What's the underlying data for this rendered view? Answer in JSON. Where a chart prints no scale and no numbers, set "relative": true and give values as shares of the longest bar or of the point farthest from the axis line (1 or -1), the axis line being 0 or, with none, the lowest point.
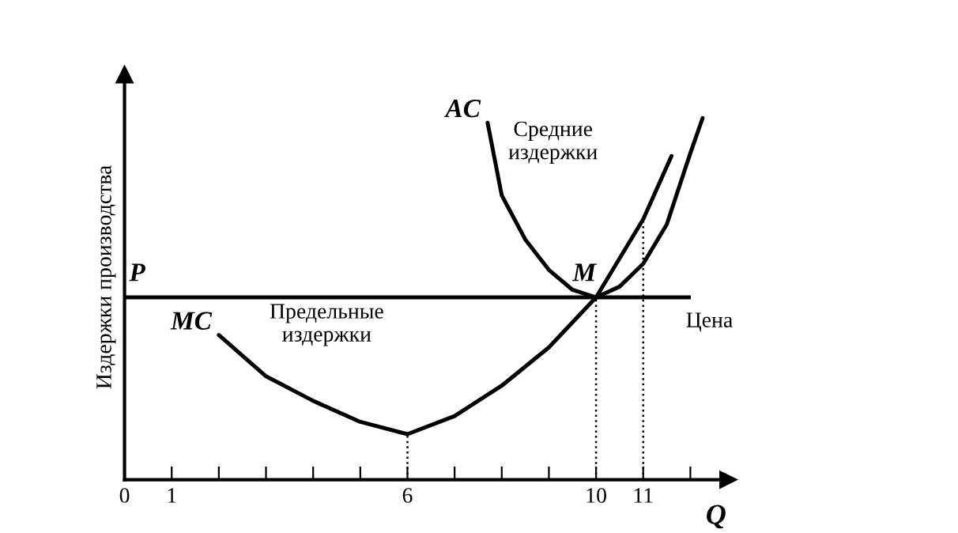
{
  "chart_data": {
    "type": "line",
    "relative": true,
    "xlabel": "Q",
    "ylabel": "Издержки производства",
    "xlim": [
      0,
      12.8
    ],
    "xticks": [
      0,
      1,
      {
        "value": 2,
        "label": null
      },
      {
        "value": 3,
        "label": null
      },
      {
        "value": 4,
        "label": null
      },
      {
        "value": 5,
        "label": null
      },
      6,
      {
        "value": 7,
        "label": null
      },
      {
        "value": 8,
        "label": null
      },
      {
        "value": 9,
        "label": null
      },
      10,
      11,
      {
        "value": 12,
        "label": null
      }
    ],
    "grid": false,
    "marker": "none",
    "line_style": "solid",
    "series": [
      {
        "name": "MC",
        "color": "#000000",
        "x": [
          2.0,
          3,
          4,
          5,
          6,
          7,
          8,
          9,
          10,
          11,
          11.6
        ],
        "values": [
          0.4,
          0.286,
          0.218,
          0.16,
          0.126,
          0.176,
          0.26,
          0.366,
          0.504,
          0.72,
          0.895
        ]
      },
      {
        "name": "AC",
        "color": "#000000",
        "x": [
          7.7,
          8,
          8.5,
          9,
          9.5,
          10,
          10.5,
          11,
          11.5,
          12,
          12.26
        ],
        "values": [
          0.987,
          0.786,
          0.664,
          0.58,
          0.525,
          0.504,
          0.534,
          0.597,
          0.706,
          0.903,
          1.0
        ]
      }
    ],
    "ref_lines": [
      {
        "axis": "y",
        "value": 0.504,
        "label": "Цена",
        "color": "#000000",
        "line_style": "solid"
      },
      {
        "axis": "x",
        "value": 6,
        "label": null,
        "color": "#000000",
        "line_style": "dotted"
      },
      {
        "axis": "x",
        "value": 10,
        "label": null,
        "color": "#000000",
        "line_style": "dotted"
      },
      {
        "axis": "x",
        "value": 11,
        "label": null,
        "color": "#000000",
        "line_style": "dotted"
      }
    ],
    "annotations": [
      {
        "text": "P",
        "x": 0.1,
        "y": 0.504
      },
      {
        "text": "M",
        "x": 10,
        "y": 0.504
      },
      "Предельные\nиздержки",
      "Средние\nиздержки"
    ]
  }
}
